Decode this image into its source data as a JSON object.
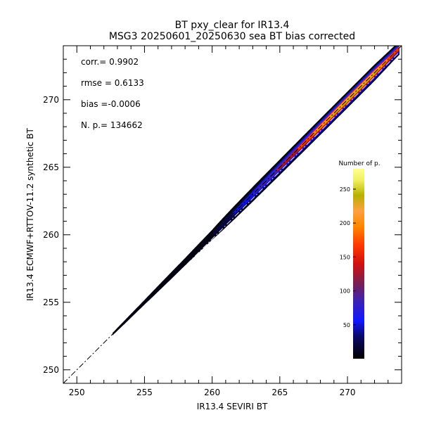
{
  "chart_data": {
    "type": "heatmap",
    "title": "BT pxy_clear for IR13.4",
    "subtitle": "MSG3 20250601_20250630 sea BT bias corrected",
    "xlabel": "IR13.4 SEVIRI BT",
    "ylabel": "IR13.4 ECMWF+RTTOV-11.2 synthetic BT",
    "xlim": [
      249,
      274
    ],
    "ylim": [
      249,
      274
    ],
    "xticks": [
      250,
      255,
      260,
      265,
      270
    ],
    "yticks": [
      250,
      255,
      260,
      265,
      270
    ],
    "reference_line": "1:1 dash-dot",
    "stats": [
      {
        "label": "corr.= 0.9902"
      },
      {
        "label": "rmse = 0.6133"
      },
      {
        "label": "bias =-0.0006"
      },
      {
        "label": "N. p.=  134662"
      }
    ],
    "colorbar": {
      "title": "Number of p.",
      "range": [
        0,
        280
      ],
      "ticks": [
        50,
        100,
        150,
        200,
        250
      ]
    },
    "density_profile": [
      {
        "x": 249.5,
        "count": 3,
        "halfwidth": 0.55
      },
      {
        "x": 252,
        "count": 5,
        "halfwidth": 0.6
      },
      {
        "x": 255,
        "count": 8,
        "halfwidth": 0.6
      },
      {
        "x": 258,
        "count": 14,
        "halfwidth": 0.6
      },
      {
        "x": 260,
        "count": 22,
        "halfwidth": 0.65
      },
      {
        "x": 262,
        "count": 60,
        "halfwidth": 0.7
      },
      {
        "x": 264,
        "count": 110,
        "halfwidth": 0.7
      },
      {
        "x": 266,
        "count": 160,
        "halfwidth": 0.7
      },
      {
        "x": 268,
        "count": 220,
        "halfwidth": 0.7
      },
      {
        "x": 270,
        "count": 250,
        "halfwidth": 0.7
      },
      {
        "x": 272,
        "count": 240,
        "halfwidth": 0.7
      },
      {
        "x": 273.5,
        "count": 180,
        "halfwidth": 0.6
      }
    ]
  }
}
